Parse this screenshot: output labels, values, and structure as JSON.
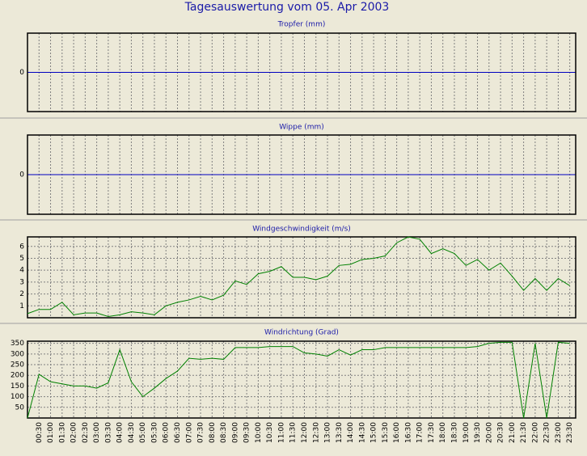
{
  "title": "Tagesauswertung vom 05. Apr 2003",
  "chart_data": [
    {
      "type": "line",
      "title": "Tropfer (mm)",
      "ylim": [
        -1,
        1
      ],
      "yticks": [
        0
      ],
      "zero_line_color": "#0000c0"
    },
    {
      "type": "line",
      "title": "Wippe (mm)",
      "ylim": [
        -1,
        1
      ],
      "yticks": [
        0
      ],
      "zero_line_color": "#0000c0"
    },
    {
      "type": "line",
      "title": "Windgeschwindigkeit (m/s)",
      "ylim": [
        0,
        6.8
      ],
      "yticks": [
        1,
        2,
        3,
        4,
        5,
        6
      ],
      "grid": true,
      "series": [
        {
          "color": "#008000",
          "values": [
            0.35,
            0.7,
            0.7,
            1.3,
            0.25,
            0.4,
            0.4,
            0.1,
            0.25,
            0.5,
            0.4,
            0.25,
            1.0,
            1.3,
            1.5,
            1.8,
            1.5,
            1.9,
            3.1,
            2.8,
            3.7,
            3.9,
            4.3,
            3.4,
            3.4,
            3.2,
            3.5,
            4.4,
            4.5,
            4.9,
            5.0,
            5.2,
            6.3,
            6.8,
            6.6,
            5.4,
            5.8,
            5.4,
            4.4,
            4.9,
            4.0,
            4.6,
            3.5,
            2.3,
            3.3,
            2.3,
            3.3,
            2.7
          ]
        }
      ]
    },
    {
      "type": "line",
      "title": "Windrichtung (Grad)",
      "ylim": [
        0,
        360
      ],
      "yticks": [
        50,
        100,
        150,
        200,
        250,
        300,
        350
      ],
      "grid": true,
      "categories": [
        null,
        "00:30",
        "01:00",
        "01:30",
        "02:00",
        "02:30",
        "03:00",
        "03:30",
        "04:00",
        "04:30",
        "05:00",
        "05:30",
        "06:00",
        "06:30",
        "07:00",
        "07:30",
        "08:00",
        "08:30",
        "09:00",
        "09:30",
        "10:00",
        "10:30",
        "11:00",
        "11:30",
        "12:00",
        "12:30",
        "13:00",
        "13:30",
        "14:00",
        "14:30",
        "15:00",
        "15:30",
        "16:00",
        "16:30",
        "17:00",
        "17:30",
        "18:00",
        "18:30",
        "19:00",
        "19:30",
        "20:00",
        "20:30",
        "21:00",
        "21:30",
        "22:00",
        "22:30",
        "23:00",
        "23:30"
      ],
      "series": [
        {
          "color": "#008000",
          "values": [
            0,
            205,
            170,
            160,
            150,
            150,
            140,
            165,
            320,
            170,
            100,
            140,
            185,
            220,
            280,
            275,
            280,
            275,
            330,
            330,
            330,
            335,
            335,
            335,
            305,
            300,
            290,
            320,
            295,
            320,
            320,
            330,
            330,
            330,
            330,
            330,
            330,
            330,
            330,
            335,
            350,
            355,
            355,
            0,
            350,
            0,
            355,
            350
          ]
        }
      ]
    }
  ]
}
